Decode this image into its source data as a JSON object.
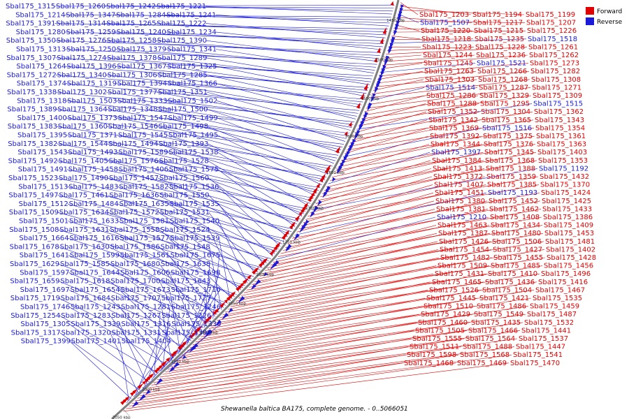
{
  "caption": "Shewanella baltica BA175, complete genome. - 0..5066051",
  "legend": {
    "forward_label": "Forward",
    "reverse_label": "Reverse",
    "forward_color": "#e00000",
    "reverse_color": "#1a1ad8"
  },
  "backbone_color": "#808080",
  "ticks": [
    "1450 kbp",
    "1500 kbp",
    "1550 kbp",
    "1600 kbp",
    "1650 kbp",
    "1700 kbp",
    "1750 kbp",
    "1800 kbp",
    "1850 kbp",
    "1900 kbp",
    "1950 kbp",
    "2000 kbp",
    "2050 kbp"
  ],
  "reverse_labels": [
    "Sbal175_1315",
    "Sbal175_1260",
    "Sbal175_1242",
    "Sbal175_1221",
    "Sbal175_1214",
    "Sbal175_1347",
    "Sbal175_1284",
    "Sbal175_1241",
    "Sbal175_1391",
    "Sbal175_1314",
    "Sbal175_1265",
    "Sbal175_1222",
    "Sbal175_1280",
    "Sbal175_1259",
    "Sbal175_1240",
    "Sbal175_1234",
    "Sbal175_1350",
    "Sbal175_1276",
    "Sbal175_1258",
    "Sbal175_1390",
    "Sbal175_1313",
    "Sbal175_1250",
    "Sbal175_1379",
    "Sbal175_1341",
    "Sbal175_1307",
    "Sbal175_1274",
    "Sbal175_1378",
    "Sbal175_1289",
    "Sbal175_1264",
    "Sbal175_1396",
    "Sbal175_1367",
    "Sbal175_1325",
    "Sbal175_1272",
    "Sbal175_1340",
    "Sbal175_1306",
    "Sbal175_1285",
    "Sbal175_1374",
    "Sbal175_1319",
    "Sbal175_1394",
    "Sbal175_1366",
    "Sbal175_1338",
    "Sbal175_1302",
    "Sbal175_1377",
    "Sbal175_1351",
    "Sbal175_1318",
    "Sbal175_1503",
    "Sbal175_1333",
    "Sbal175_1502",
    "Sbal175_1389",
    "Sbal175_1364",
    "Sbal175_1348",
    "Sbal175_1500",
    "Sbal175_1400",
    "Sbal175_1373",
    "Sbal175_1547",
    "Sbal175_1499",
    "Sbal175_1383",
    "Sbal175_1360",
    "Sbal175_1546",
    "Sbal175_1498",
    "Sbal175_1395",
    "Sbal175_1371",
    "Sbal175_1545",
    "Sbal175_1495",
    "Sbal175_1382",
    "Sbal175_1544",
    "Sbal175_1494",
    "Sbal175_1393",
    "Sbal175_1543",
    "Sbal175_1493",
    "Sbal175_1589",
    "Sbal175_1538",
    "Sbal175_1492",
    "Sbal175_1405",
    "Sbal175_1576",
    "Sbal175_1528",
    "Sbal175_1491",
    "Sbal175_1458",
    "Sbal175_1406",
    "Sbal175_1575",
    "Sbal175_1523",
    "Sbal175_1490",
    "Sbal175_1457",
    "Sbal175_1560",
    "Sbal175_1513",
    "Sbal175_1483",
    "Sbal175_1582",
    "Sbal175_1536",
    "Sbal175_1497",
    "Sbal175_1461",
    "Sbal175_1636",
    "Sbal175_1550",
    "Sbal175_1512",
    "Sbal175_1484",
    "Sbal175_1635",
    "Sbal175_1535",
    "Sbal175_1509",
    "Sbal175_1634",
    "Sbal175_1572",
    "Sbal175_1531",
    "Sbal175_1501",
    "Sbal175_1633",
    "Sbal175_1581",
    "Sbal175_1540",
    "Sbal175_1508",
    "Sbal175_1631",
    "Sbal175_1558",
    "Sbal175_1524",
    "Sbal175_1664",
    "Sbal175_1616",
    "Sbal175_1577",
    "Sbal175_1539",
    "Sbal175_1678",
    "Sbal175_1630",
    "Sbal175_1586",
    "Sbal175_1548",
    "Sbal175_1641",
    "Sbal175_1599",
    "Sbal175_1561",
    "Sbal175_1675",
    "Sbal175_1629",
    "Sbal175_1585",
    "Sbal175_1680",
    "Sbal175_1638",
    "Sbal175_1597",
    "Sbal175_1644",
    "Sbal175_1606",
    "Sbal175_1698",
    "Sbal175_1659",
    "Sbal175_1618",
    "Sbal175_1700",
    "Sbal175_1643",
    "Sbal175_1697",
    "Sbal175_1654",
    "Sbal175_1673",
    "Sbal175_1710",
    "Sbal175_1719",
    "Sbal175_1684",
    "Sbal175_1707",
    "Sbal175_1727",
    "Sbal175_1746",
    "Sbal175_1507",
    "Sbal175_1518",
    "Sbal175_1521",
    "Sbal175_1514",
    "Sbal175_1515",
    "Sbal175_1516",
    "Sbal175_1397",
    "Sbal175_1192",
    "Sbal175_1193",
    "Sbal175_1210",
    "Sbal175_1243",
    "Sbal175_1281",
    "Sbal175_1246",
    "Sbal175_1254",
    "Sbal175_1283",
    "Sbal175_1267",
    "Sbal175_1326",
    "Sbal175_1305",
    "Sbal175_1339",
    "Sbal175_1316",
    "Sbal175_1330",
    "Sbal175_1317",
    "Sbal175_1320",
    "Sbal175_1331",
    "Sbal175_1398",
    "Sbal175_1399",
    "Sbal175_1401",
    "Sbal175_1404"
  ],
  "forward_labels": [
    "Sbal175_1203",
    "Sbal175_1194",
    "Sbal175_1199",
    "Sbal175_1217",
    "Sbal175_1207",
    "Sbal175_1220",
    "Sbal175_1215",
    "Sbal175_1226",
    "Sbal175_1218",
    "Sbal175_1235",
    "Sbal175_1223",
    "Sbal175_1228",
    "Sbal175_1261",
    "Sbal175_1244",
    "Sbal175_1236",
    "Sbal175_1262",
    "Sbal175_1245",
    "Sbal175_1273",
    "Sbal175_1263",
    "Sbal175_1266",
    "Sbal175_1282",
    "Sbal175_1303",
    "Sbal175_1268",
    "Sbal175_1308",
    "Sbal175_1287",
    "Sbal175_1271",
    "Sbal175_1286",
    "Sbal175_1329",
    "Sbal175_1309",
    "Sbal175_1288",
    "Sbal175_1295",
    "Sbal175_1352",
    "Sbal175_1304",
    "Sbal175_1362",
    "Sbal175_1342",
    "Sbal175_1365",
    "Sbal175_1343",
    "Sbal175_1369",
    "Sbal175_1354",
    "Sbal175_1392",
    "Sbal175_1375",
    "Sbal175_1361",
    "Sbal175_1344",
    "Sbal175_1376",
    "Sbal175_1363",
    "Sbal175_1345",
    "Sbal175_1403",
    "Sbal175_1384",
    "Sbal175_1368",
    "Sbal175_1353",
    "Sbal175_1413",
    "Sbal175_1388",
    "Sbal175_1372",
    "Sbal175_1359",
    "Sbal175_1432",
    "Sbal175_1407",
    "Sbal175_1385",
    "Sbal175_1370",
    "Sbal175_1451",
    "Sbal175_1424",
    "Sbal175_1380",
    "Sbal175_1452",
    "Sbal175_1425",
    "Sbal175_1381",
    "Sbal175_1462",
    "Sbal175_1433",
    "Sbal175_1408",
    "Sbal175_1386",
    "Sbal175_1463",
    "Sbal175_1434",
    "Sbal175_1409",
    "Sbal175_1387",
    "Sbal175_1480",
    "Sbal175_1453",
    "Sbal175_1426",
    "Sbal175_1506",
    "Sbal175_1481",
    "Sbal175_1454",
    "Sbal175_1427",
    "Sbal175_1402",
    "Sbal175_1482",
    "Sbal175_1455",
    "Sbal175_1428",
    "Sbal175_1509",
    "Sbal175_1485",
    "Sbal175_1456",
    "Sbal175_1431",
    "Sbal175_1410",
    "Sbal175_1496",
    "Sbal175_1465",
    "Sbal175_1436",
    "Sbal175_1416",
    "Sbal175_1526",
    "Sbal175_1504",
    "Sbal175_1467",
    "Sbal175_1445",
    "Sbal175_1421",
    "Sbal175_1535",
    "Sbal175_1510",
    "Sbal175_1486",
    "Sbal175_1459",
    "Sbal175_1429",
    "Sbal175_1549",
    "Sbal175_1487",
    "Sbal175_1460",
    "Sbal175_1435",
    "Sbal175_1532",
    "Sbal175_1505",
    "Sbal175_1466",
    "Sbal175_1441",
    "Sbal175_1555",
    "Sbal175_1564",
    "Sbal175_1537",
    "Sbal175_1511",
    "Sbal175_1488",
    "Sbal175_1447",
    "Sbal175_1598",
    "Sbal175_1568",
    "Sbal175_1541",
    "Sbal175_1468",
    "Sbal175_1469",
    "Sbal175_1470"
  ]
}
